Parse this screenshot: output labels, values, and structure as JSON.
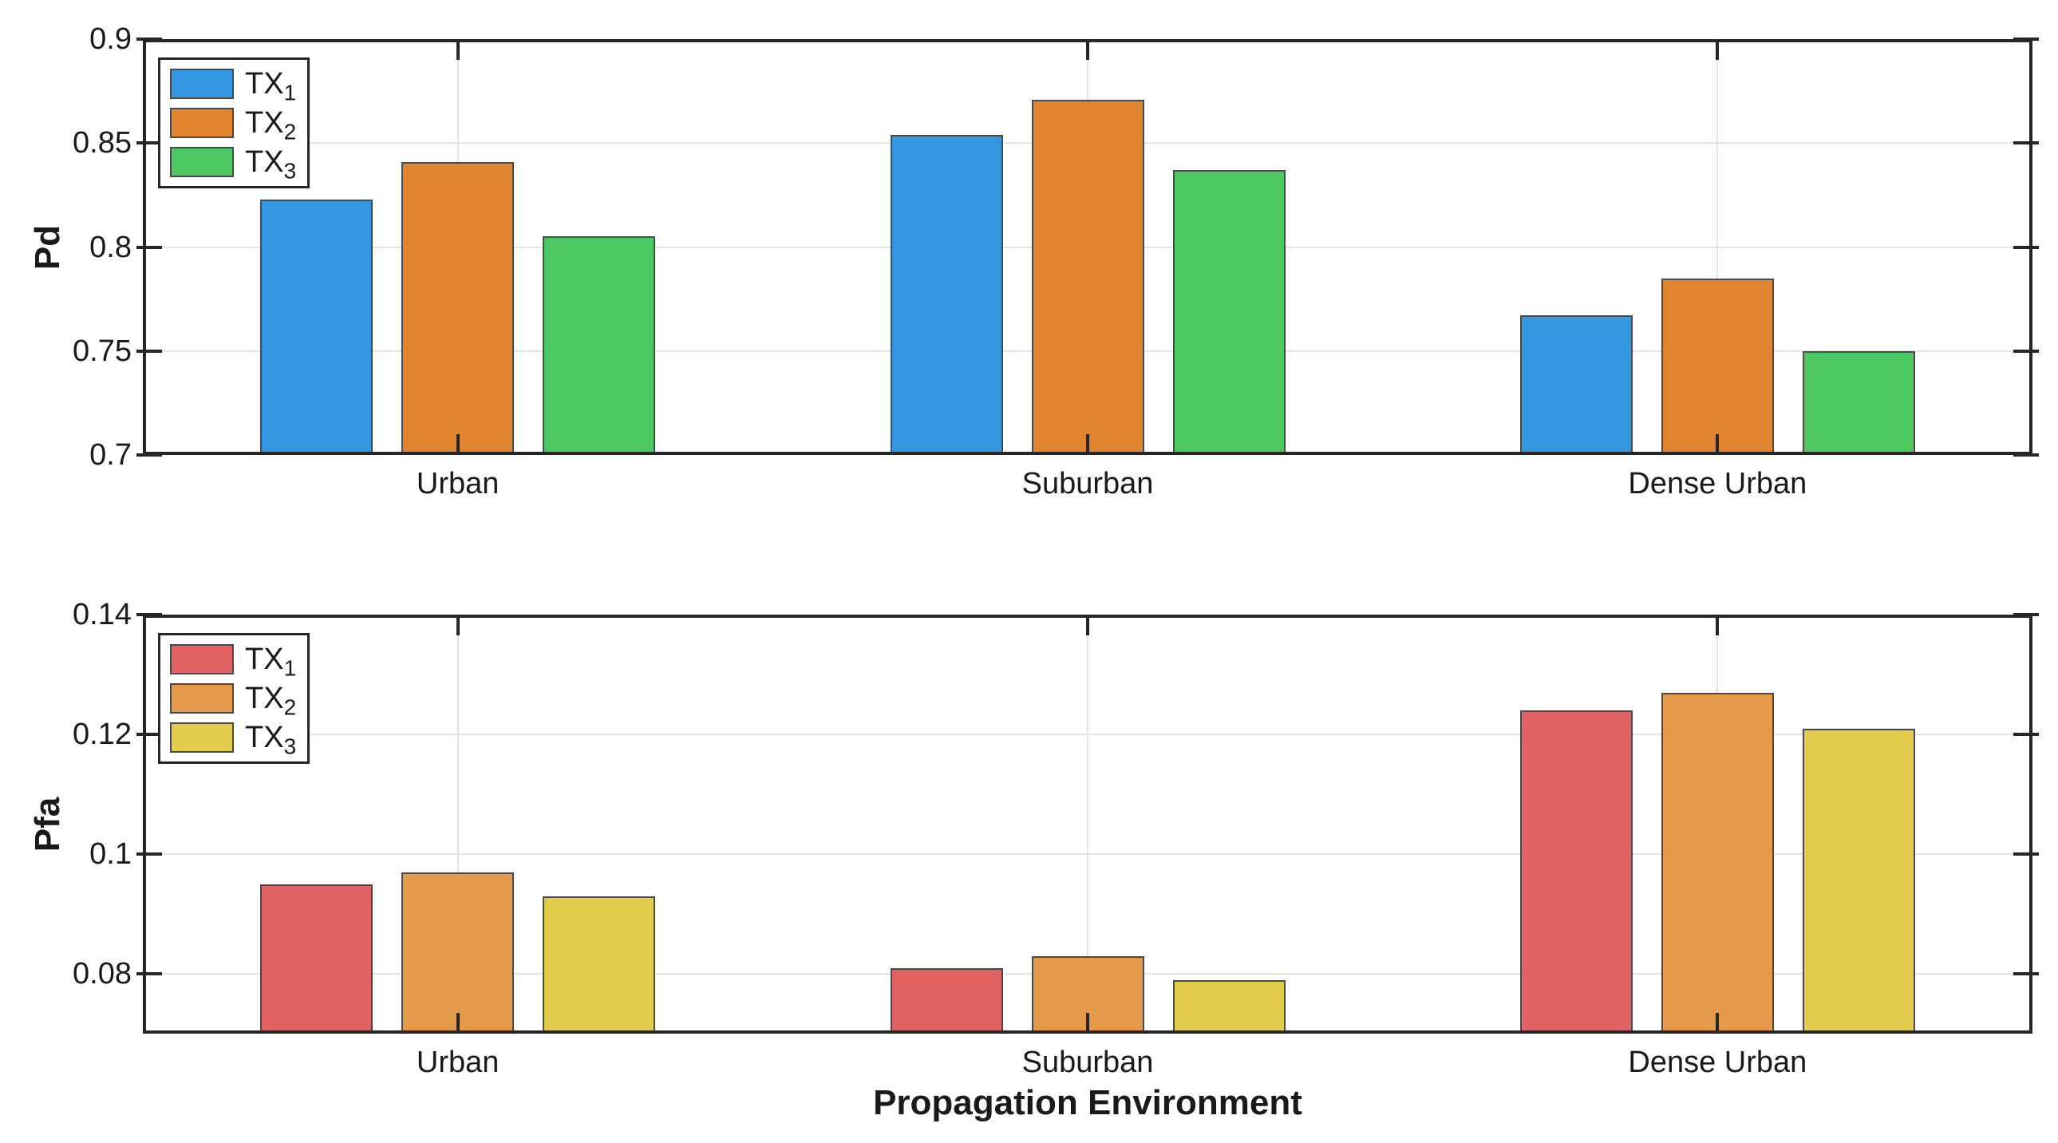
{
  "figure": {
    "background": "#ffffff",
    "frame_color": "#262626",
    "grid_color": "#e3e3e3",
    "bar_edge_color": "#4a4a4a"
  },
  "chart_data": [
    {
      "type": "bar",
      "title": "",
      "ylabel": "Pd",
      "xlabel": "",
      "categories": [
        "Urban",
        "Suburban",
        "Dense Urban"
      ],
      "series": [
        {
          "name": "TX1",
          "legend_label": "TX",
          "legend_sub": "1",
          "color": "#3397e2",
          "values": [
            0.823,
            0.854,
            0.767
          ]
        },
        {
          "name": "TX2",
          "legend_label": "TX",
          "legend_sub": "2",
          "color": "#e0842f",
          "values": [
            0.841,
            0.871,
            0.785
          ]
        },
        {
          "name": "TX3",
          "legend_label": "TX",
          "legend_sub": "3",
          "color": "#4ec962",
          "values": [
            0.805,
            0.837,
            0.75
          ]
        }
      ],
      "ylim": [
        0.7,
        0.9
      ],
      "yticks": [
        0.7,
        0.75,
        0.8,
        0.85,
        0.9
      ],
      "ytick_labels": [
        "0.7",
        "0.75",
        "0.8",
        "0.85",
        "0.9"
      ],
      "grid": true,
      "legend_position": "top-left"
    },
    {
      "type": "bar",
      "title": "",
      "ylabel": "Pfa",
      "xlabel": "Propagation Environment",
      "categories": [
        "Urban",
        "Suburban",
        "Dense Urban"
      ],
      "series": [
        {
          "name": "TX1",
          "legend_label": "TX",
          "legend_sub": "1",
          "color": "#e16263",
          "values": [
            0.095,
            0.081,
            0.124
          ]
        },
        {
          "name": "TX2",
          "legend_label": "TX",
          "legend_sub": "2",
          "color": "#e49a4a",
          "values": [
            0.097,
            0.083,
            0.127
          ]
        },
        {
          "name": "TX3",
          "legend_label": "TX",
          "legend_sub": "3",
          "color": "#e2cb4d",
          "values": [
            0.093,
            0.079,
            0.121
          ]
        }
      ],
      "ylim": [
        0.07,
        0.14
      ],
      "yticks": [
        0.08,
        0.1,
        0.12,
        0.14
      ],
      "ytick_labels": [
        "0.08",
        "0.1",
        "0.12",
        "0.14"
      ],
      "grid": true,
      "legend_position": "top-left"
    }
  ]
}
